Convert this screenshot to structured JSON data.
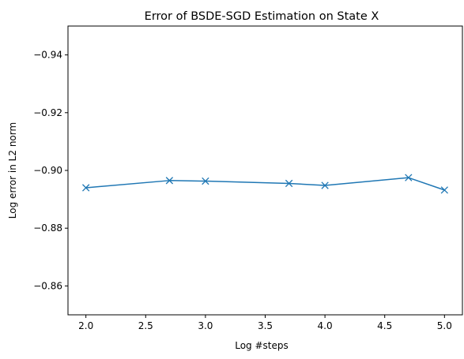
{
  "chart_data": {
    "type": "line",
    "title": "Error of BSDE-SGD Estimation on State X",
    "xlabel": "Log #steps",
    "ylabel": "Log error in L2 norm",
    "xlim": [
      1.85,
      5.15
    ],
    "ylim": [
      -0.85,
      -0.95
    ],
    "y_inverted": true,
    "grid": false,
    "x_ticks": [
      2.0,
      2.5,
      3.0,
      3.5,
      4.0,
      4.5,
      5.0
    ],
    "x_tick_labels": [
      "2.0",
      "2.5",
      "3.0",
      "3.5",
      "4.0",
      "4.5",
      "5.0"
    ],
    "y_ticks": [
      -0.94,
      -0.92,
      -0.9,
      -0.88,
      -0.86
    ],
    "y_tick_labels": [
      "−0.94",
      "−0.92",
      "−0.90",
      "−0.88",
      "−0.86"
    ],
    "series": [
      {
        "color": "#1f77b4",
        "marker": "x",
        "x": [
          2.0,
          2.699,
          3.0,
          3.699,
          4.0,
          4.699,
          5.0
        ],
        "y": [
          -0.894,
          -0.8965,
          -0.8963,
          -0.8955,
          -0.8948,
          -0.8975,
          -0.8932
        ]
      }
    ]
  }
}
